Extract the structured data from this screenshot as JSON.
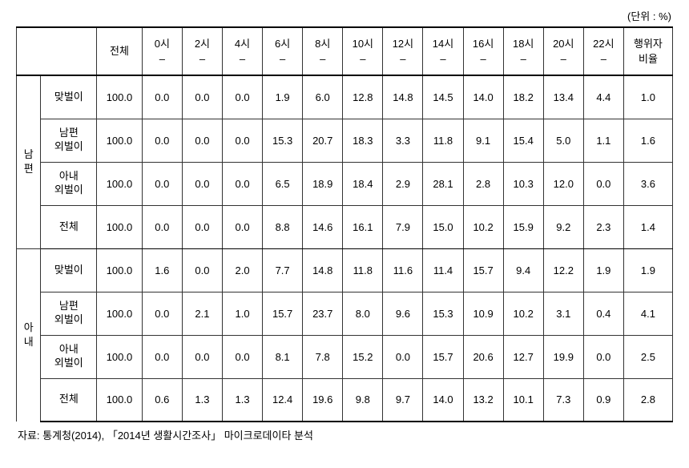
{
  "unit_label": "(단위 : %)",
  "header": {
    "corner": "",
    "total": "전체",
    "times": [
      {
        "top": "0시",
        "bottom": "–"
      },
      {
        "top": "2시",
        "bottom": "–"
      },
      {
        "top": "4시",
        "bottom": "–"
      },
      {
        "top": "6시",
        "bottom": "–"
      },
      {
        "top": "8시",
        "bottom": "–"
      },
      {
        "top": "10시",
        "bottom": "–"
      },
      {
        "top": "12시",
        "bottom": "–"
      },
      {
        "top": "14시",
        "bottom": "–"
      },
      {
        "top": "16시",
        "bottom": "–"
      },
      {
        "top": "18시",
        "bottom": "–"
      },
      {
        "top": "20시",
        "bottom": "–"
      },
      {
        "top": "22시",
        "bottom": "–"
      }
    ],
    "rate": {
      "line1": "행위자",
      "line2": "비율"
    }
  },
  "groups": [
    {
      "name_lines": [
        "남",
        "편"
      ],
      "rows": [
        {
          "label_lines": [
            "맞벌이"
          ],
          "values": [
            "100.0",
            "0.0",
            "0.0",
            "0.0",
            "1.9",
            "6.0",
            "12.8",
            "14.8",
            "14.5",
            "14.0",
            "18.2",
            "13.4",
            "4.4",
            "1.0"
          ]
        },
        {
          "label_lines": [
            "남편",
            "외벌이"
          ],
          "values": [
            "100.0",
            "0.0",
            "0.0",
            "0.0",
            "15.3",
            "20.7",
            "18.3",
            "3.3",
            "11.8",
            "9.1",
            "15.4",
            "5.0",
            "1.1",
            "1.6"
          ]
        },
        {
          "label_lines": [
            "아내",
            "외벌이"
          ],
          "values": [
            "100.0",
            "0.0",
            "0.0",
            "0.0",
            "6.5",
            "18.9",
            "18.4",
            "2.9",
            "28.1",
            "2.8",
            "10.3",
            "12.0",
            "0.0",
            "3.6"
          ]
        },
        {
          "label_lines": [
            "전체"
          ],
          "values": [
            "100.0",
            "0.0",
            "0.0",
            "0.0",
            "8.8",
            "14.6",
            "16.1",
            "7.9",
            "15.0",
            "10.2",
            "15.9",
            "9.2",
            "2.3",
            "1.4"
          ]
        }
      ]
    },
    {
      "name_lines": [
        "아",
        "내"
      ],
      "rows": [
        {
          "label_lines": [
            "맞벌이"
          ],
          "values": [
            "100.0",
            "1.6",
            "0.0",
            "2.0",
            "7.7",
            "14.8",
            "11.8",
            "11.6",
            "11.4",
            "15.7",
            "9.4",
            "12.2",
            "1.9",
            "1.9"
          ]
        },
        {
          "label_lines": [
            "남편",
            "외벌이"
          ],
          "values": [
            "100.0",
            "0.0",
            "2.1",
            "1.0",
            "15.7",
            "23.7",
            "8.0",
            "9.6",
            "15.3",
            "10.9",
            "10.2",
            "3.1",
            "0.4",
            "4.1"
          ]
        },
        {
          "label_lines": [
            "아내",
            "외벌이"
          ],
          "values": [
            "100.0",
            "0.0",
            "0.0",
            "0.0",
            "8.1",
            "7.8",
            "15.2",
            "0.0",
            "15.7",
            "20.6",
            "12.7",
            "19.9",
            "0.0",
            "2.5"
          ]
        },
        {
          "label_lines": [
            "전체"
          ],
          "values": [
            "100.0",
            "0.6",
            "1.3",
            "1.3",
            "12.4",
            "19.6",
            "9.8",
            "9.7",
            "14.0",
            "13.2",
            "10.1",
            "7.3",
            "0.9",
            "2.8"
          ]
        }
      ]
    }
  ],
  "source": "자료: 통계청(2014), 「2014년 생활시간조사」 마이크로데이타 분석"
}
